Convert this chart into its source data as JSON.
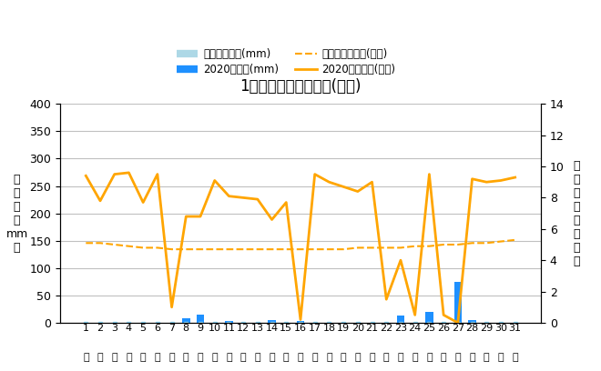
{
  "title": "1月降水量・日照時間(日別)",
  "days": [
    1,
    2,
    3,
    4,
    5,
    6,
    7,
    8,
    9,
    10,
    11,
    12,
    13,
    14,
    15,
    16,
    17,
    18,
    19,
    20,
    21,
    22,
    23,
    24,
    25,
    26,
    27,
    28,
    29,
    30,
    31
  ],
  "precip_2020": [
    0,
    0,
    0,
    0,
    0,
    0,
    0,
    8,
    15,
    0,
    4,
    0,
    0,
    5,
    0,
    3,
    0,
    0,
    0,
    0,
    0,
    0,
    13,
    0,
    20,
    0,
    75,
    5,
    0,
    0,
    0
  ],
  "precip_avg": [
    2,
    2,
    2,
    2,
    2,
    2,
    2,
    2,
    2,
    2,
    2,
    2,
    2,
    2,
    2,
    2,
    2,
    2,
    2,
    2,
    2,
    2,
    2,
    2,
    2,
    2,
    2,
    2,
    2,
    2,
    2
  ],
  "sunshine_2020": [
    9.4,
    7.8,
    9.5,
    9.6,
    7.7,
    9.5,
    1.0,
    6.8,
    6.8,
    9.1,
    8.1,
    8.0,
    7.9,
    6.6,
    7.7,
    0.2,
    9.5,
    9.0,
    8.7,
    8.4,
    9.0,
    1.5,
    4.0,
    0.5,
    9.5,
    0.5,
    0.0,
    9.2,
    9.0,
    9.1,
    9.3
  ],
  "sunshine_avg": [
    5.1,
    5.1,
    5.0,
    4.9,
    4.8,
    4.8,
    4.7,
    4.7,
    4.7,
    4.7,
    4.7,
    4.7,
    4.7,
    4.7,
    4.7,
    4.7,
    4.7,
    4.7,
    4.7,
    4.8,
    4.8,
    4.8,
    4.8,
    4.9,
    4.9,
    5.0,
    5.0,
    5.1,
    5.1,
    5.2,
    5.3
  ],
  "ylim_left": [
    0,
    400
  ],
  "ylim_right": [
    0,
    14
  ],
  "yticks_left": [
    0,
    50,
    100,
    150,
    200,
    250,
    300,
    350,
    400
  ],
  "yticks_right": [
    0,
    2,
    4,
    6,
    8,
    10,
    12,
    14
  ],
  "bar_color": "#1E90FF",
  "bar_avg_color": "#ADD8E6",
  "line_color": "#FFA500",
  "line_avg_color": "#FFA500",
  "ylabel_left": "降\n水\n量\n（\nmm\n）",
  "ylabel_right": "日\n照\n時\n間\n（\n時\n間\n）",
  "legend_precip_avg": "降水量平年値(mm)",
  "legend_precip_2020": "2020降水量(mm)",
  "legend_sunshine_avg": "日照時間平年値(時間)",
  "legend_sunshine_2020": "2020日照時間(時間)",
  "background_color": "#FFFFFF",
  "grid_color": "#C0C0C0",
  "hi_char": "日"
}
